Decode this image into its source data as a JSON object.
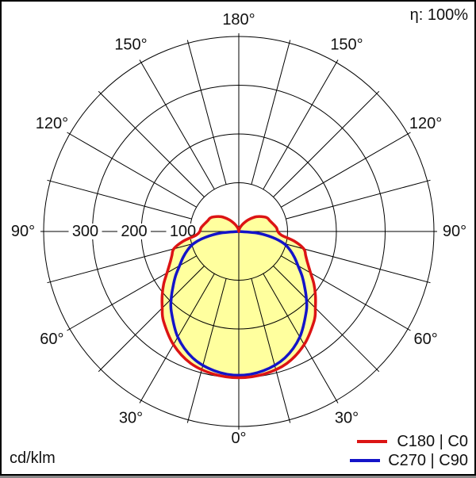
{
  "header": {
    "efficiency_label": "η: 100%"
  },
  "footer": {
    "unit_label": "cd/klm"
  },
  "legend": {
    "items": [
      {
        "label": "C180 | C0",
        "color": "#dc1414"
      },
      {
        "label": "C270 | C90",
        "color": "#1414c8"
      }
    ]
  },
  "chart_data": {
    "type": "polar_intensity_distribution",
    "unit": "cd/klm",
    "efficiency": "η: 100%",
    "grid": {
      "angle_step_deg": 15,
      "rings": [
        100,
        200,
        300,
        400
      ],
      "rmax": 400,
      "fill_color": "#ffff9e",
      "grid_color": "#000000"
    },
    "radial_tick_labels": [
      {
        "value": 300,
        "label": "300"
      },
      {
        "value": 200,
        "label": "200"
      },
      {
        "value": 100,
        "label": "100"
      }
    ],
    "angle_labels": [
      {
        "dir": 180,
        "label": "180°"
      },
      {
        "dir": -150,
        "label": "150°"
      },
      {
        "dir": 150,
        "label": "150°"
      },
      {
        "dir": -120,
        "label": "120°"
      },
      {
        "dir": 120,
        "label": "120°"
      },
      {
        "dir": -90,
        "label": "90°"
      },
      {
        "dir": 90,
        "label": "90°"
      },
      {
        "dir": -60,
        "label": "60°"
      },
      {
        "dir": 60,
        "label": "60°"
      },
      {
        "dir": -30,
        "label": "30°"
      },
      {
        "dir": 30,
        "label": "30°"
      },
      {
        "dir": 0,
        "label": "0°"
      }
    ],
    "series": [
      {
        "name": "C180 | C0",
        "color": "#dc1414",
        "symmetric": true,
        "filled": true,
        "gamma_deg": [
          0,
          10,
          20,
          30,
          40,
          45,
          50,
          55,
          60,
          65,
          70,
          75,
          80,
          85,
          90,
          95,
          100,
          105,
          110,
          115,
          120,
          130,
          140,
          150,
          160,
          170,
          180
        ],
        "values_cd_klm": [
          300,
          297,
          288,
          268,
          240,
          222,
          205,
          188,
          170,
          156,
          146,
          138,
          116,
          88,
          80,
          78,
          74,
          70,
          67,
          65,
          60,
          47,
          32,
          19,
          10,
          4,
          0
        ]
      },
      {
        "name": "C270 | C90",
        "color": "#1414c8",
        "symmetric": true,
        "filled": false,
        "gamma_deg": [
          0,
          10,
          20,
          30,
          40,
          45,
          50,
          55,
          60,
          65,
          70,
          75,
          80,
          85,
          90
        ],
        "values_cd_klm": [
          295,
          290,
          276,
          250,
          215,
          196,
          176,
          158,
          140,
          126,
          112,
          96,
          70,
          38,
          0
        ]
      }
    ]
  }
}
